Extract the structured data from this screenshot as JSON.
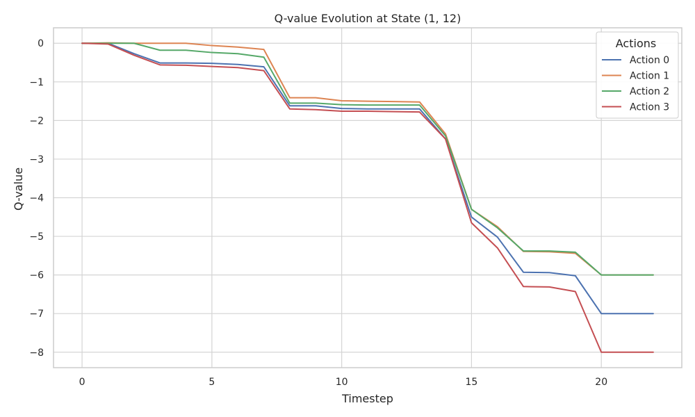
{
  "chart_data": {
    "type": "line",
    "title": "Q-value Evolution at State (1, 12)",
    "xlabel": "Timestep",
    "ylabel": "Q-value",
    "xlim": [
      -1.1,
      23.1
    ],
    "ylim": [
      -8.4,
      0.4
    ],
    "xticks": [
      0,
      5,
      10,
      15,
      20
    ],
    "yticks": [
      0,
      -1,
      -2,
      -3,
      -4,
      -5,
      -6,
      -7,
      -8
    ],
    "ytick_labels": [
      "0",
      "−1",
      "−2",
      "−3",
      "−4",
      "−5",
      "−6",
      "−7",
      "−8"
    ],
    "grid": true,
    "legend": {
      "title": "Actions",
      "position": "top-right"
    },
    "x": [
      0,
      1,
      2,
      3,
      4,
      5,
      6,
      7,
      8,
      9,
      10,
      11,
      12,
      13,
      14,
      15,
      16,
      17,
      18,
      19,
      20,
      21,
      22
    ],
    "series": [
      {
        "name": "Action 0",
        "color": "#4c72b0",
        "values": [
          0,
          0,
          -0.27,
          -0.51,
          -0.51,
          -0.52,
          -0.55,
          -0.61,
          -1.62,
          -1.62,
          -1.69,
          -1.7,
          -1.7,
          -1.7,
          -2.48,
          -4.5,
          -5.02,
          -5.93,
          -5.94,
          -6.02,
          -7.0,
          -7.0,
          -7.0
        ]
      },
      {
        "name": "Action 1",
        "color": "#dd8452",
        "values": [
          0,
          0.01,
          0,
          0,
          0,
          -0.06,
          -0.1,
          -0.16,
          -1.41,
          -1.41,
          -1.49,
          -1.5,
          -1.51,
          -1.52,
          -2.35,
          -4.3,
          -4.75,
          -5.39,
          -5.4,
          -5.44,
          -6.0,
          -6.0,
          -6.0
        ]
      },
      {
        "name": "Action 2",
        "color": "#55a868",
        "values": [
          0,
          0,
          0,
          -0.18,
          -0.18,
          -0.24,
          -0.27,
          -0.36,
          -1.55,
          -1.55,
          -1.59,
          -1.6,
          -1.6,
          -1.6,
          -2.4,
          -4.3,
          -4.78,
          -5.38,
          -5.38,
          -5.41,
          -6.0,
          -6.0,
          -6.0
        ]
      },
      {
        "name": "Action 3",
        "color": "#c44e52",
        "values": [
          0,
          -0.02,
          -0.31,
          -0.56,
          -0.57,
          -0.6,
          -0.63,
          -0.71,
          -1.7,
          -1.72,
          -1.76,
          -1.76,
          -1.77,
          -1.78,
          -2.48,
          -4.65,
          -5.3,
          -6.3,
          -6.31,
          -6.43,
          -8.0,
          -8.0,
          -8.0
        ]
      }
    ]
  }
}
